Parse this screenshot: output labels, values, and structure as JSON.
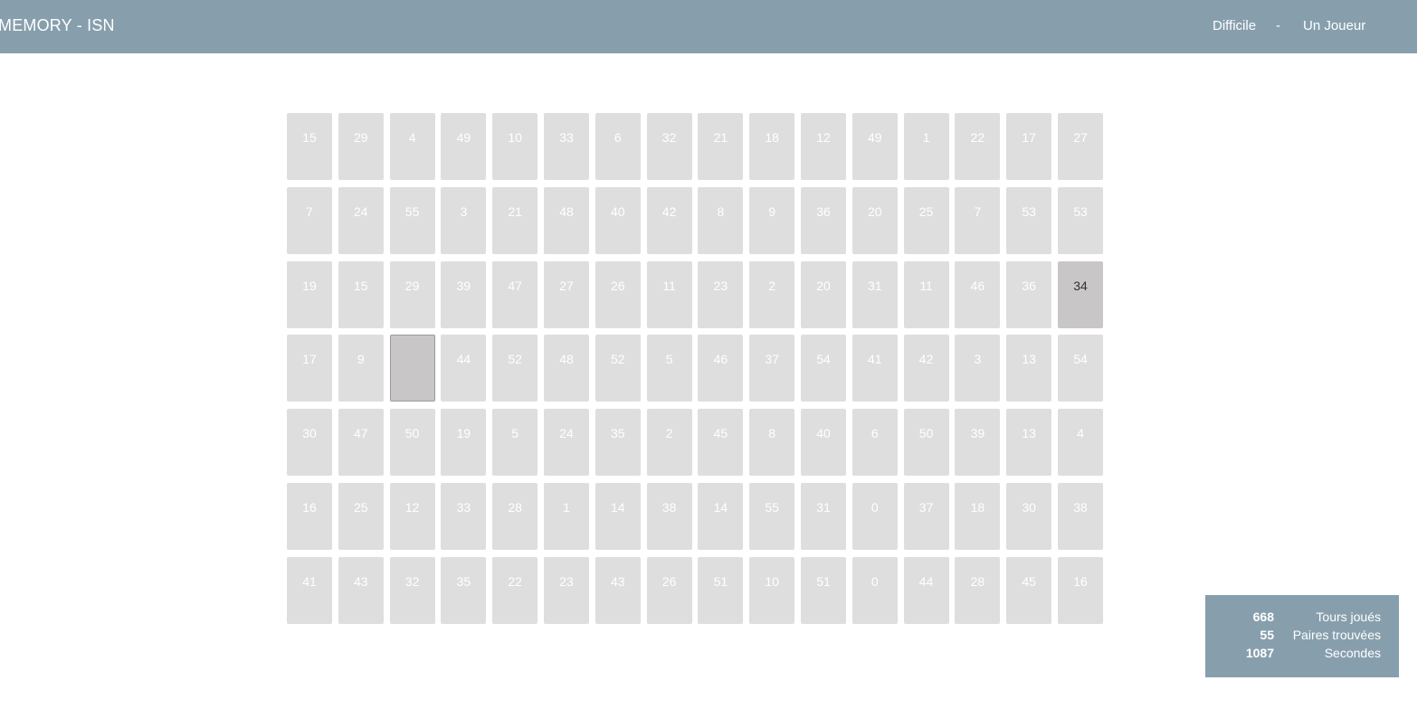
{
  "header": {
    "title": "MEMORY - ISN",
    "difficulty": "Difficile",
    "separator": "-",
    "mode": "Un Joueur"
  },
  "board": {
    "rows": [
      [
        "15",
        "29",
        "4",
        "49",
        "10",
        "33",
        "6",
        "32",
        "21",
        "18",
        "12",
        "49",
        "1",
        "22",
        "17",
        "27"
      ],
      [
        "7",
        "24",
        "55",
        "3",
        "21",
        "48",
        "40",
        "42",
        "8",
        "9",
        "36",
        "20",
        "25",
        "7",
        "53",
        "53"
      ],
      [
        "19",
        "15",
        "29",
        "39",
        "47",
        "27",
        "26",
        "11",
        "23",
        "2",
        "20",
        "31",
        "11",
        "46",
        "36",
        "34"
      ],
      [
        "17",
        "9",
        "",
        "44",
        "52",
        "48",
        "52",
        "5",
        "46",
        "37",
        "54",
        "41",
        "42",
        "3",
        "13",
        "54"
      ],
      [
        "30",
        "47",
        "50",
        "19",
        "5",
        "24",
        "35",
        "2",
        "45",
        "8",
        "40",
        "6",
        "50",
        "39",
        "13",
        "4"
      ],
      [
        "16",
        "25",
        "12",
        "33",
        "28",
        "1",
        "14",
        "38",
        "14",
        "55",
        "31",
        "0",
        "37",
        "18",
        "30",
        "38"
      ],
      [
        "41",
        "43",
        "32",
        "35",
        "22",
        "23",
        "43",
        "26",
        "51",
        "10",
        "51",
        "0",
        "44",
        "28",
        "45",
        "16"
      ]
    ],
    "revealed_card": {
      "row": 2,
      "col": 15
    },
    "selected_card": {
      "row": 3,
      "col": 2
    }
  },
  "stats": {
    "turns": {
      "value": "668",
      "label": "Tours joués"
    },
    "pairs": {
      "value": "55",
      "label": "Paires trouvées"
    },
    "seconds": {
      "value": "1087",
      "label": "Secondes"
    }
  },
  "colors": {
    "header_bg": "#879fad",
    "card_bg": "#dedede",
    "card_revealed_bg": "#c9c6c7"
  }
}
